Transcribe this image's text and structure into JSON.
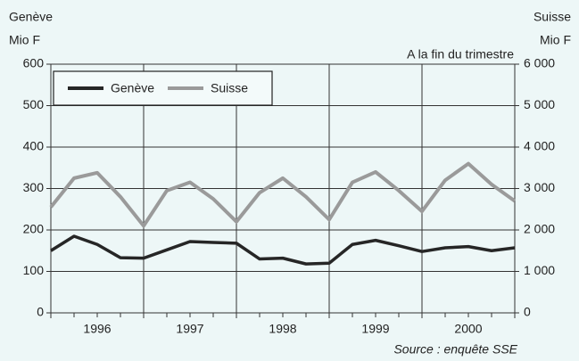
{
  "chart_data": {
    "type": "line",
    "ylabel": [
      "Genève",
      "Mio F"
    ],
    "y2label": [
      "Suisse",
      "Mio F"
    ],
    "annotation": "A la fin du trimestre",
    "source": "Source : enquête SSE",
    "categories": [
      null,
      null,
      "1996",
      null,
      null,
      null,
      "1997",
      null,
      null,
      null,
      "1998",
      null,
      null,
      null,
      "1999",
      null,
      null,
      null,
      "2000",
      null,
      null
    ],
    "series": [
      {
        "name": "Genève",
        "color": "#262626",
        "values": [
          150,
          185,
          165,
          133,
          132,
          152,
          172,
          170,
          168,
          130,
          132,
          118,
          120,
          165,
          175,
          162,
          148,
          157,
          160,
          150,
          157
        ]
      },
      {
        "name": "Suisse",
        "color": "#9a9a9a",
        "axis": "y2",
        "values": [
          2550,
          3250,
          3380,
          2800,
          2100,
          2950,
          3150,
          2750,
          2200,
          2900,
          3250,
          2800,
          2250,
          3150,
          3400,
          2950,
          2450,
          3200,
          3600,
          3100,
          2700
        ]
      }
    ],
    "ylim": [
      0,
      600
    ],
    "yticks": [
      0,
      100,
      200,
      300,
      400,
      500,
      600
    ],
    "y2lim": [
      0,
      6000
    ],
    "y2ticks": [
      0,
      {
        "value": 1000,
        "label": "1 000"
      },
      {
        "value": 2000,
        "label": "2 000"
      },
      {
        "value": 3000,
        "label": "3 000"
      },
      {
        "value": 4000,
        "label": "4 000"
      },
      {
        "value": 5000,
        "label": "5 000"
      },
      {
        "value": 6000,
        "label": "6 000"
      }
    ],
    "grid": true
  }
}
